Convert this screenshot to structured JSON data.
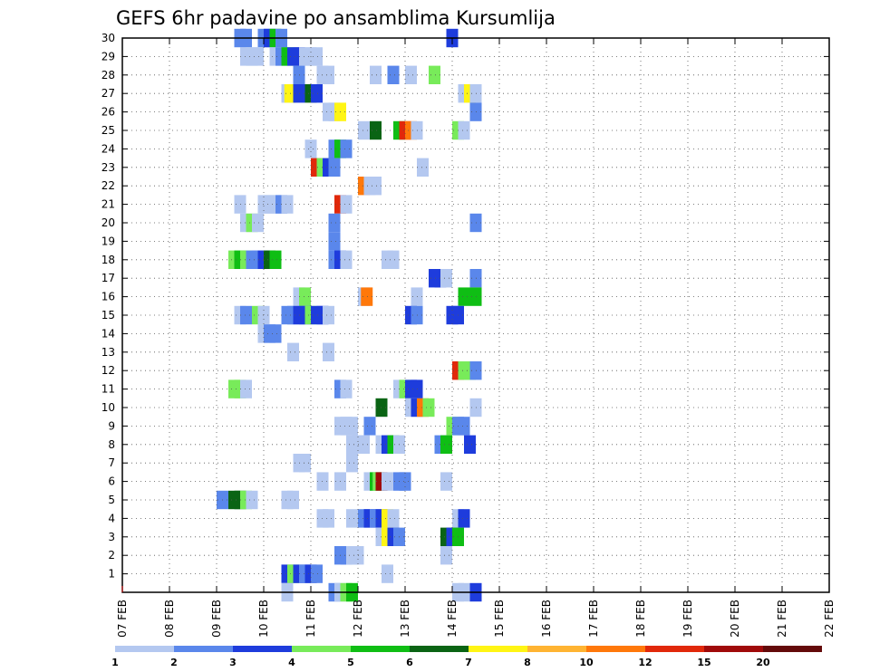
{
  "chart_data": {
    "type": "heatmap",
    "title": "GEFS 6hr padavine po ansamblima Kursumlija",
    "x_tick_labels": [
      "07 FEB",
      "08 FEB",
      "09 FEB",
      "10 FEB",
      "11 FEB",
      "12 FEB",
      "13 FEB",
      "14 FEB",
      "15 FEB",
      "16 FEB",
      "17 FEB",
      "18 FEB",
      "19 FEB",
      "20 FEB",
      "21 FEB",
      "22 FEB"
    ],
    "x_range_days": [
      0,
      15
    ],
    "y_tick_labels": [
      "1",
      "2",
      "3",
      "4",
      "5",
      "6",
      "7",
      "8",
      "9",
      "10",
      "11",
      "12",
      "13",
      "14",
      "15",
      "16",
      "17",
      "18",
      "19",
      "20",
      "21",
      "22",
      "23",
      "24",
      "25",
      "26",
      "27",
      "28",
      "29",
      "30"
    ],
    "y_range": [
      0,
      30
    ],
    "grid": true,
    "legend_placement": "bottom",
    "legend": {
      "labels": [
        "1",
        "2",
        "3",
        "4",
        "5",
        "6",
        "7",
        "8",
        "10",
        "12",
        "15",
        "20"
      ],
      "colors": [
        "#b4c8f0",
        "#5a87eb",
        "#1e3cdc",
        "#78eb5a",
        "#0fbe14",
        "#0a6414",
        "#fff514",
        "#ffb432",
        "#ff780a",
        "#e1280a",
        "#a00a0a",
        "#640a0a"
      ]
    },
    "cells": [
      {
        "m": 30,
        "t": [
          [
            9.5,
            1
          ],
          [
            10,
            1
          ],
          [
            11.5,
            1
          ],
          [
            12,
            2
          ],
          [
            12.5,
            4
          ],
          [
            13,
            1
          ],
          [
            27.5,
            2
          ]
        ]
      },
      {
        "m": 29,
        "t": [
          [
            10,
            0
          ],
          [
            10.5,
            0
          ],
          [
            11,
            0
          ],
          [
            12.5,
            0
          ],
          [
            13,
            1
          ],
          [
            13.5,
            4
          ],
          [
            14,
            2
          ],
          [
            14.5,
            2
          ],
          [
            15,
            0
          ],
          [
            15.5,
            0
          ],
          [
            16,
            0
          ]
        ]
      },
      {
        "m": 28,
        "t": [
          [
            14.5,
            1
          ],
          [
            16.5,
            0
          ],
          [
            17,
            0
          ],
          [
            21,
            0
          ],
          [
            22.5,
            1
          ],
          [
            24,
            0
          ],
          [
            26,
            3
          ]
        ]
      },
      {
        "m": 27,
        "t": [
          [
            13.5,
            0
          ],
          [
            13.75,
            6
          ],
          [
            14.5,
            2
          ],
          [
            15.5,
            5
          ],
          [
            16,
            2
          ],
          [
            28.5,
            0
          ],
          [
            29,
            6
          ],
          [
            29.5,
            0
          ]
        ]
      },
      {
        "m": 26,
        "t": [
          [
            17,
            0
          ],
          [
            17.5,
            0
          ],
          [
            18,
            6
          ],
          [
            29.5,
            1
          ]
        ]
      },
      {
        "m": 25,
        "t": [
          [
            20,
            0
          ],
          [
            21,
            5
          ],
          [
            23,
            4
          ],
          [
            23.5,
            9
          ],
          [
            24,
            8
          ],
          [
            24.5,
            0
          ],
          [
            28,
            3
          ],
          [
            28.5,
            0
          ]
        ]
      },
      {
        "m": 24,
        "t": [
          [
            15.5,
            0
          ],
          [
            17.5,
            1
          ],
          [
            18,
            4
          ],
          [
            18.5,
            1
          ]
        ]
      },
      {
        "m": 23,
        "t": [
          [
            16,
            9
          ],
          [
            16.5,
            3
          ],
          [
            17,
            2
          ],
          [
            17.5,
            1
          ],
          [
            25,
            0
          ]
        ]
      },
      {
        "m": 22,
        "t": [
          [
            20,
            8
          ],
          [
            20.5,
            0
          ],
          [
            21,
            0
          ]
        ]
      },
      {
        "m": 21,
        "t": [
          [
            9.5,
            0
          ],
          [
            11.5,
            0
          ],
          [
            12,
            0
          ],
          [
            12.5,
            0
          ],
          [
            13,
            1
          ],
          [
            13.5,
            0
          ],
          [
            18,
            9
          ],
          [
            18.5,
            0
          ]
        ]
      },
      {
        "m": 20,
        "t": [
          [
            10,
            0
          ],
          [
            10.5,
            3
          ],
          [
            11,
            0
          ],
          [
            17.5,
            1
          ],
          [
            29.5,
            1
          ]
        ]
      },
      {
        "m": 19,
        "t": [
          [
            17.5,
            1
          ]
        ]
      },
      {
        "m": 18,
        "t": [
          [
            9,
            3
          ],
          [
            9.5,
            4
          ],
          [
            10,
            3
          ],
          [
            10.5,
            1
          ],
          [
            11,
            1
          ],
          [
            11.5,
            2
          ],
          [
            12,
            5
          ],
          [
            12.5,
            4
          ],
          [
            17.5,
            1
          ],
          [
            18,
            2
          ],
          [
            18.5,
            0
          ],
          [
            22,
            0
          ],
          [
            22.5,
            0
          ]
        ]
      },
      {
        "m": 17,
        "t": [
          [
            26,
            2
          ],
          [
            26.5,
            2
          ],
          [
            27,
            0
          ],
          [
            29.5,
            1
          ]
        ]
      },
      {
        "m": 16,
        "t": [
          [
            14.5,
            0
          ],
          [
            15,
            3
          ],
          [
            20,
            0
          ],
          [
            20.25,
            8
          ],
          [
            24.5,
            0
          ],
          [
            28.5,
            4
          ],
          [
            29.5,
            4
          ]
        ]
      },
      {
        "m": 15,
        "t": [
          [
            9.5,
            0
          ],
          [
            10,
            1
          ],
          [
            11,
            3
          ],
          [
            11.5,
            0
          ],
          [
            13.5,
            1
          ],
          [
            14,
            1
          ],
          [
            14.5,
            2
          ],
          [
            15,
            2
          ],
          [
            15.5,
            3
          ],
          [
            16,
            2
          ],
          [
            16.5,
            2
          ],
          [
            17,
            0
          ],
          [
            24,
            2
          ],
          [
            24.5,
            1
          ],
          [
            27.5,
            2
          ],
          [
            28,
            2
          ]
        ]
      },
      {
        "m": 14,
        "t": [
          [
            11.5,
            0
          ],
          [
            12,
            1
          ],
          [
            12.5,
            1
          ]
        ]
      },
      {
        "m": 13,
        "t": [
          [
            14,
            0
          ],
          [
            17,
            0
          ]
        ]
      },
      {
        "m": 12,
        "t": [
          [
            28,
            9
          ],
          [
            28.5,
            3
          ],
          [
            29,
            3
          ],
          [
            29.5,
            1
          ]
        ]
      },
      {
        "m": 11,
        "t": [
          [
            9,
            3
          ],
          [
            9.5,
            3
          ],
          [
            10,
            0
          ],
          [
            18,
            1
          ],
          [
            18.5,
            0
          ],
          [
            23,
            0
          ],
          [
            23.5,
            3
          ],
          [
            24,
            2
          ],
          [
            24.5,
            2
          ]
        ]
      },
      {
        "m": 10,
        "t": [
          [
            21.5,
            5
          ],
          [
            24,
            0
          ],
          [
            24.5,
            2
          ],
          [
            25,
            8
          ],
          [
            25.5,
            3
          ],
          [
            29.5,
            0
          ]
        ]
      },
      {
        "m": 9,
        "t": [
          [
            18,
            0
          ],
          [
            18.5,
            0
          ],
          [
            19,
            0
          ],
          [
            20.5,
            1
          ],
          [
            27.5,
            3
          ],
          [
            28,
            1
          ],
          [
            28.5,
            1
          ]
        ]
      },
      {
        "m": 8,
        "t": [
          [
            19,
            0
          ],
          [
            19.5,
            0
          ],
          [
            20,
            0
          ],
          [
            21.5,
            0
          ],
          [
            22,
            2
          ],
          [
            22.5,
            4
          ],
          [
            23,
            0
          ],
          [
            26.5,
            1
          ],
          [
            27,
            4
          ],
          [
            29,
            2
          ]
        ]
      },
      {
        "m": 7,
        "t": [
          [
            14.5,
            0
          ],
          [
            15,
            0
          ],
          [
            19,
            0
          ]
        ]
      },
      {
        "m": 6,
        "t": [
          [
            16.5,
            0
          ],
          [
            18,
            0
          ],
          [
            20.5,
            0
          ],
          [
            21,
            4
          ],
          [
            21.25,
            3
          ],
          [
            21.5,
            10
          ],
          [
            22,
            0
          ],
          [
            23,
            1
          ],
          [
            23.5,
            1
          ],
          [
            27,
            0
          ]
        ]
      },
      {
        "m": 5,
        "t": [
          [
            8,
            1
          ],
          [
            9,
            5
          ],
          [
            9.5,
            5
          ],
          [
            10,
            3
          ],
          [
            10.5,
            0
          ],
          [
            13.5,
            0
          ],
          [
            14,
            0
          ]
        ]
      },
      {
        "m": 4,
        "t": [
          [
            16.5,
            0
          ],
          [
            17,
            0
          ],
          [
            19,
            0
          ],
          [
            20,
            1
          ],
          [
            20.5,
            2
          ],
          [
            21,
            1
          ],
          [
            21.5,
            2
          ],
          [
            22,
            6
          ],
          [
            22.5,
            0
          ],
          [
            28,
            0
          ],
          [
            28.5,
            2
          ]
        ]
      },
      {
        "m": 3,
        "t": [
          [
            21.5,
            0
          ],
          [
            22,
            6
          ],
          [
            22.5,
            2
          ],
          [
            23,
            1
          ],
          [
            27,
            5
          ],
          [
            27.5,
            2
          ],
          [
            28,
            4
          ]
        ]
      },
      {
        "m": 2,
        "t": [
          [
            18,
            1
          ],
          [
            18.5,
            1
          ],
          [
            19,
            0
          ],
          [
            19.5,
            0
          ],
          [
            27,
            0
          ]
        ]
      },
      {
        "m": 1,
        "t": [
          [
            13.5,
            2
          ],
          [
            14,
            3
          ],
          [
            14.5,
            2
          ],
          [
            15,
            1
          ],
          [
            15.5,
            2
          ],
          [
            16,
            1
          ],
          [
            22,
            0
          ]
        ]
      },
      {
        "m": 0,
        "t": [
          [
            13.5,
            0
          ],
          [
            17.5,
            1
          ],
          [
            18,
            0
          ],
          [
            18.5,
            3
          ],
          [
            19,
            4
          ],
          [
            28,
            0
          ],
          [
            28.5,
            0
          ],
          [
            29.5,
            2
          ]
        ]
      }
    ]
  }
}
